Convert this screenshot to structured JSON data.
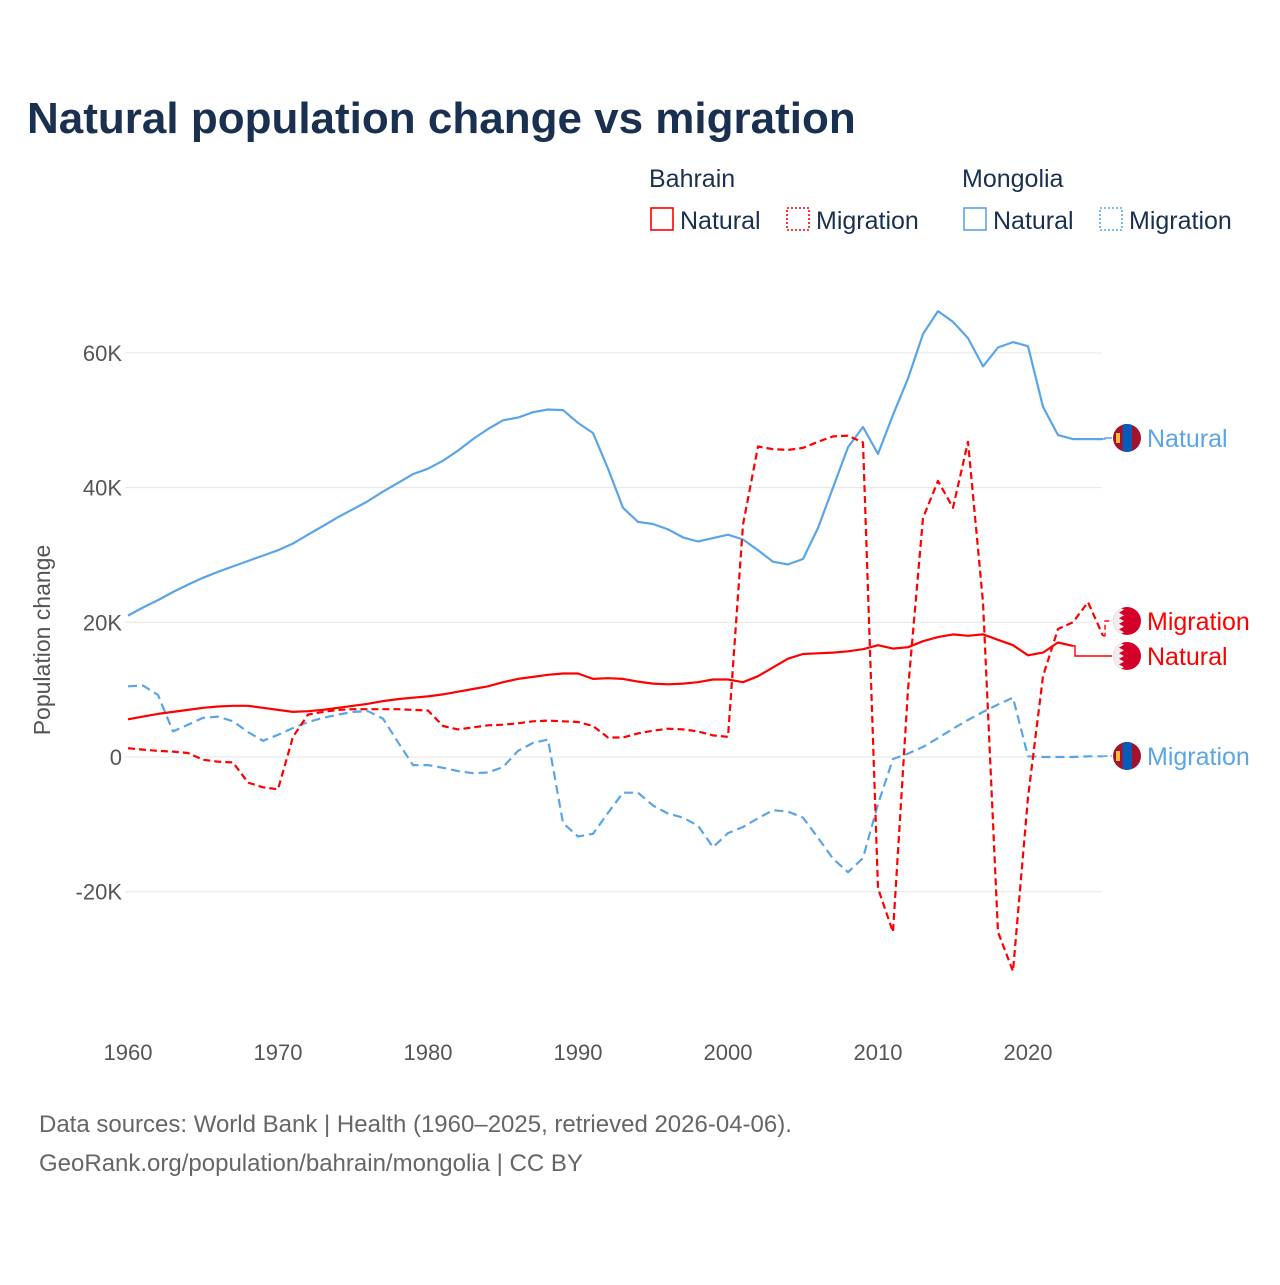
{
  "title": "Natural population change vs migration",
  "legend": {
    "groups": [
      {
        "name": "Bahrain",
        "items": [
          "Natural",
          "Migration"
        ],
        "color": "#ff0000"
      },
      {
        "name": "Mongolia",
        "items": [
          "Natural",
          "Migration"
        ],
        "color": "#5aa5e8"
      }
    ]
  },
  "source": {
    "line1": "Data sources: World Bank | Health (1960–2025, retrieved 2026-04-06).",
    "line2": "GeoRank.org/population/bahrain/mongolia | CC BY"
  },
  "chart_data": {
    "type": "line",
    "title": "Natural population change vs migration",
    "xlabel": "",
    "ylabel": "Population change",
    "xlim": [
      1960,
      2025
    ],
    "ylim": [
      -35000,
      70000
    ],
    "x_ticks": [
      1960,
      1970,
      1980,
      1990,
      2000,
      2010,
      2020
    ],
    "x_tick_labels": [
      "1960",
      "1970",
      "1980",
      "1990",
      "2000",
      "2010",
      "2020"
    ],
    "y_ticks": [
      -20000,
      0,
      20000,
      40000,
      60000
    ],
    "y_tick_labels": [
      "-20K",
      "0",
      "20K",
      "40K",
      "60K"
    ],
    "grid": true,
    "legend_position": "top-right",
    "series": [
      {
        "name": "Mongolia Natural",
        "label": "Natural",
        "country": "Mongolia",
        "color": "#5aa5e8",
        "dashed": false,
        "start_year": 1960,
        "values": [
          21000,
          22200,
          23300,
          24500,
          25600,
          26600,
          27500,
          28300,
          29100,
          29900,
          30700,
          31700,
          33000,
          34300,
          35600,
          36800,
          38000,
          39400,
          40700,
          42000,
          42800,
          44000,
          45500,
          47200,
          48700,
          50000,
          50400,
          51200,
          51600,
          51500,
          49600,
          48100,
          42800,
          37000,
          34900,
          34600,
          33800,
          32600,
          32000,
          32500,
          33000,
          32300,
          30700,
          29000,
          28600,
          29400,
          34000,
          40000,
          46000,
          49000,
          45000,
          50800,
          56200,
          62800,
          66200,
          64600,
          62200,
          58000,
          60800,
          61600,
          61000,
          52000,
          47800,
          47200,
          47200,
          47200
        ]
      },
      {
        "name": "Mongolia Migration",
        "label": "Migration",
        "country": "Mongolia",
        "color": "#5aa5e8",
        "dashed": true,
        "start_year": 1960,
        "values": [
          10500,
          10600,
          9200,
          3800,
          4800,
          5800,
          6000,
          5300,
          3700,
          2400,
          3300,
          4300,
          5200,
          5800,
          6300,
          6700,
          6800,
          5700,
          2200,
          -1200,
          -1200,
          -1600,
          -2100,
          -2400,
          -2300,
          -1500,
          900,
          2100,
          2600,
          -9800,
          -11800,
          -11400,
          -8300,
          -5300,
          -5300,
          -7200,
          -8400,
          -9000,
          -10200,
          -13400,
          -11300,
          -10400,
          -9100,
          -7900,
          -8100,
          -9000,
          -12000,
          -15100,
          -17100,
          -15000,
          -7000,
          -300,
          500,
          1500,
          2800,
          4200,
          5500,
          6700,
          7800,
          8800,
          100,
          0,
          0,
          0,
          100,
          100
        ]
      },
      {
        "name": "Bahrain Natural",
        "label": "Natural",
        "country": "Bahrain",
        "color": "#ff0000",
        "dashed": false,
        "start_year": 1960,
        "values": [
          5600,
          6000,
          6400,
          6700,
          7000,
          7300,
          7500,
          7600,
          7600,
          7300,
          7000,
          6700,
          6800,
          7000,
          7300,
          7600,
          7900,
          8300,
          8600,
          8800,
          9000,
          9300,
          9700,
          10100,
          10500,
          11100,
          11600,
          11900,
          12200,
          12400,
          12400,
          11600,
          11700,
          11600,
          11200,
          10900,
          10800,
          10900,
          11100,
          11500,
          11500,
          11100,
          12000,
          13300,
          14600,
          15300,
          15400,
          15500,
          15700,
          16000,
          16600,
          16100,
          16300,
          17200,
          17800,
          18200,
          18000,
          18200,
          17400,
          16600,
          15100,
          15500,
          17000,
          16500
        ]
      },
      {
        "name": "Bahrain Migration",
        "label": "Migration",
        "country": "Bahrain",
        "color": "#ff0000",
        "dashed": true,
        "start_year": 1960,
        "values": [
          1300,
          1100,
          900,
          800,
          600,
          -400,
          -700,
          -800,
          -3800,
          -4500,
          -4800,
          3000,
          6300,
          6700,
          7000,
          7100,
          7100,
          7100,
          7100,
          7000,
          6900,
          4600,
          4100,
          4400,
          4700,
          4800,
          5000,
          5300,
          5400,
          5300,
          5200,
          4600,
          2900,
          2900,
          3500,
          3900,
          4200,
          4100,
          3800,
          3200,
          3000,
          34500,
          46100,
          45700,
          45600,
          45900,
          46800,
          47600,
          47700,
          46700,
          -19500,
          -26000,
          10000,
          35500,
          41000,
          37000,
          46800,
          23000,
          -26000,
          -31800,
          -6000,
          12000,
          19000,
          20000,
          23000,
          18000
        ]
      }
    ]
  }
}
